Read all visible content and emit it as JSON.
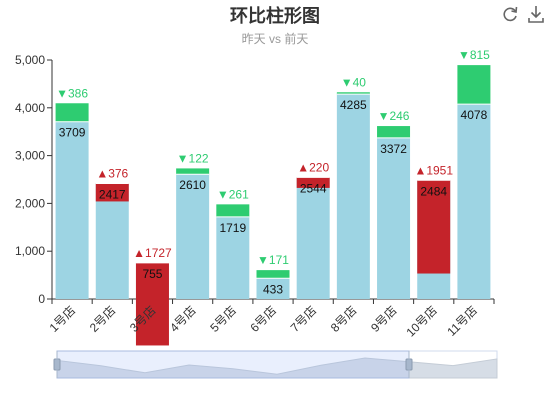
{
  "title": "环比柱形图",
  "subtitle": "昨天 vs 前天",
  "toolbox": {
    "restore_icon": "refresh-icon",
    "save_icon": "download-icon"
  },
  "colors": {
    "base": "#9dd4e3",
    "up": "#c4232a",
    "down": "#2ecc71",
    "axis": "#333333",
    "grid": "#e6e6e6"
  },
  "chart_data": {
    "type": "bar",
    "categories": [
      "1号店",
      "2号店",
      "3号店",
      "4号店",
      "5号店",
      "6号店",
      "7号店",
      "8号店",
      "9号店",
      "10号店",
      "11号店"
    ],
    "ylim": [
      0,
      5000
    ],
    "yticks": [
      "0",
      "1,000",
      "2,000",
      "3,000",
      "4,000",
      "5,000"
    ],
    "yticks_values": [
      0,
      1000,
      2000,
      3000,
      4000,
      5000
    ],
    "series": [
      {
        "values": [
          3709,
          2417,
          755,
          2610,
          1719,
          433,
          2544,
          4285,
          3372,
          2484,
          4078
        ]
      }
    ],
    "changes": [
      {
        "dir": "down",
        "value": 386
      },
      {
        "dir": "up",
        "value": 376
      },
      {
        "dir": "up",
        "value": 1727
      },
      {
        "dir": "down",
        "value": 122
      },
      {
        "dir": "down",
        "value": 261
      },
      {
        "dir": "down",
        "value": 171
      },
      {
        "dir": "up",
        "value": 220
      },
      {
        "dir": "down",
        "value": 40
      },
      {
        "dir": "down",
        "value": 246
      },
      {
        "dir": "up",
        "value": 1951
      },
      {
        "dir": "down",
        "value": 815
      }
    ],
    "change_labels": [
      "▼386",
      "▲376",
      "▲1727",
      "▼122",
      "▼261",
      "▼171",
      "▲220",
      "▼40",
      "▼246",
      "▲1951",
      "▼815"
    ],
    "grid": false,
    "legend": "none",
    "datazoom": {
      "start_fraction": 0.0,
      "end_fraction": 0.8
    }
  }
}
